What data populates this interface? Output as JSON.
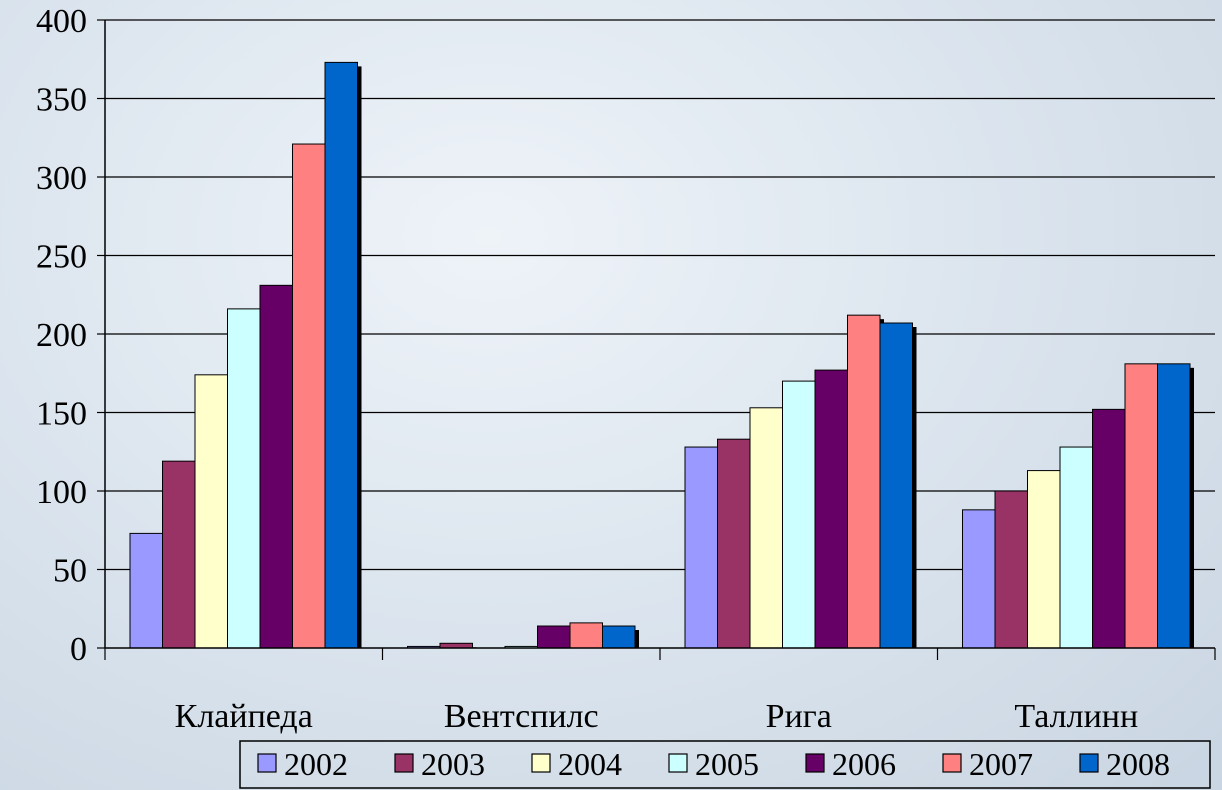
{
  "chart_data": {
    "type": "bar",
    "title": "",
    "xlabel": "",
    "ylabel": "",
    "ylim": [
      0,
      400
    ],
    "yticks": [
      0,
      50,
      100,
      150,
      200,
      250,
      300,
      350,
      400
    ],
    "grid": true,
    "legend_position": "bottom-right",
    "categories": [
      "Клайпеда",
      "Вентспилс",
      "Рига",
      "Таллинн"
    ],
    "series": [
      {
        "name": "2002",
        "color": "#9999ff",
        "values": [
          73,
          1,
          128,
          88
        ]
      },
      {
        "name": "2003",
        "color": "#993366",
        "values": [
          119,
          3,
          133,
          100
        ]
      },
      {
        "name": "2004",
        "color": "#ffffcc",
        "values": [
          174,
          0,
          153,
          113
        ]
      },
      {
        "name": "2005",
        "color": "#ccffff",
        "values": [
          216,
          1,
          170,
          128
        ]
      },
      {
        "name": "2006",
        "color": "#660066",
        "values": [
          231,
          14,
          177,
          152
        ]
      },
      {
        "name": "2007",
        "color": "#ff8080",
        "values": [
          321,
          16,
          212,
          181
        ]
      },
      {
        "name": "2008",
        "color": "#0066cc",
        "values": [
          373,
          14,
          207,
          181
        ]
      }
    ]
  }
}
